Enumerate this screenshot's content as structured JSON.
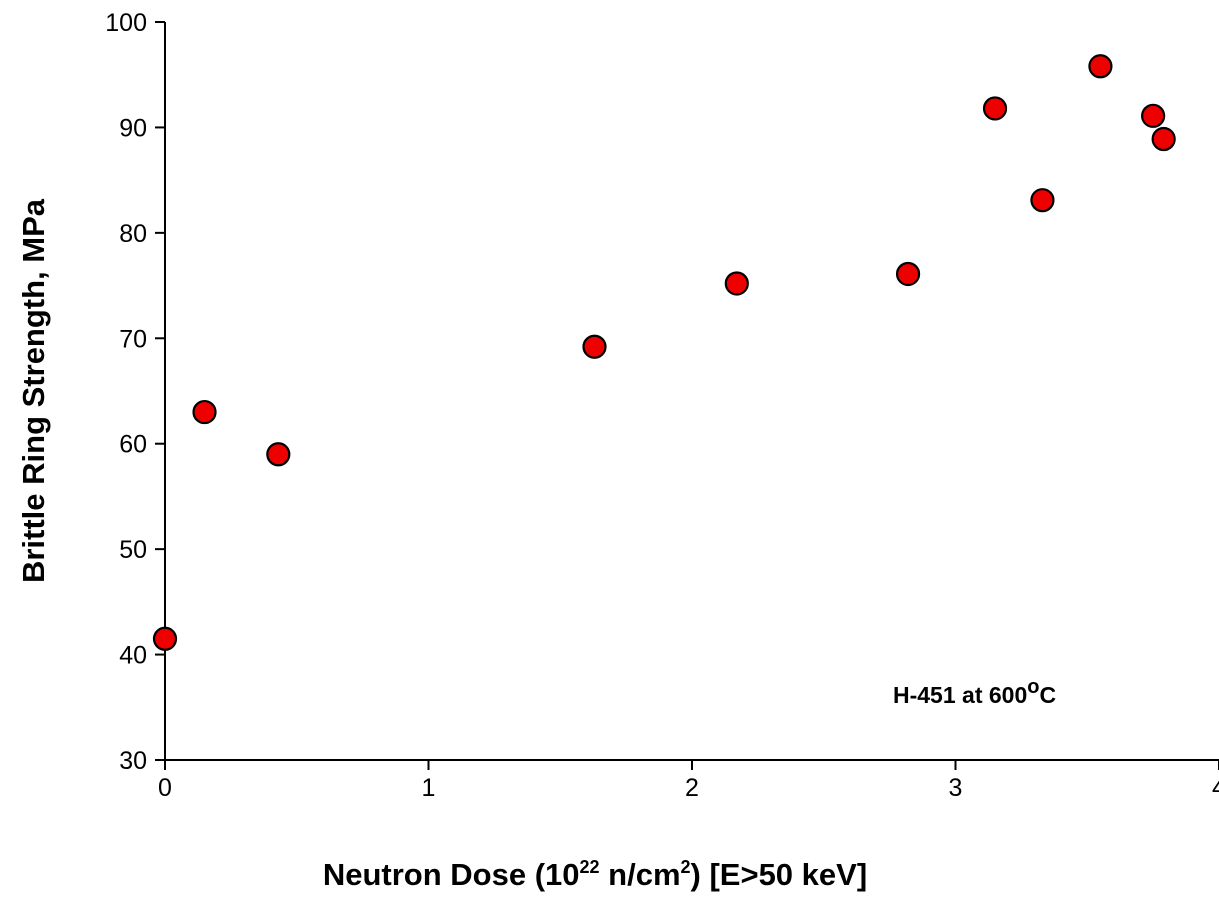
{
  "chart_data": {
    "type": "scatter",
    "xlabel": {
      "prefix": "Neutron Dose (10",
      "exp": "22",
      "mid": " n/cm",
      "exp2": "2",
      "suffix": ") [E>50 keV]"
    },
    "ylabel": "Brittle Ring Strength, MPa",
    "xlim": [
      0,
      4
    ],
    "ylim": [
      30,
      100
    ],
    "x_ticks": [
      "0",
      "1",
      "2",
      "3",
      "4"
    ],
    "y_ticks": [
      "30",
      "40",
      "50",
      "60",
      "70",
      "80",
      "90",
      "100"
    ],
    "grid": false,
    "marker_color": "#ee0000",
    "marker_edge": "#000000",
    "annotation": {
      "prefix": "H-451 at 600",
      "degree": "o",
      "suffix": "C"
    },
    "points": [
      {
        "x": 0.0,
        "y": 41.5
      },
      {
        "x": 0.15,
        "y": 63.0
      },
      {
        "x": 0.43,
        "y": 59.0
      },
      {
        "x": 1.63,
        "y": 69.2
      },
      {
        "x": 2.17,
        "y": 75.2
      },
      {
        "x": 2.82,
        "y": 76.1
      },
      {
        "x": 3.15,
        "y": 91.8
      },
      {
        "x": 3.33,
        "y": 83.1
      },
      {
        "x": 3.55,
        "y": 95.8
      },
      {
        "x": 3.75,
        "y": 91.1
      },
      {
        "x": 3.79,
        "y": 88.9
      }
    ]
  }
}
